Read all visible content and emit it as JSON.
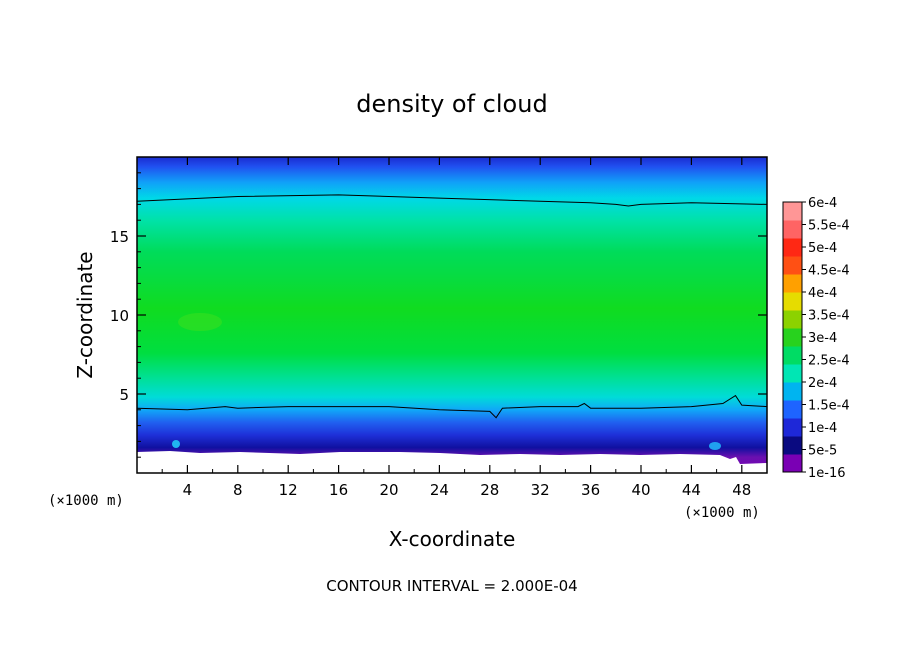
{
  "chart_data": {
    "type": "heatmap",
    "title": "density of cloud",
    "xlabel": "X-coordinate",
    "ylabel": "Z-coordinate",
    "x_unit": "(×1000 m)",
    "y_unit": "(×1000 m)",
    "xlim": [
      0,
      50
    ],
    "ylim": [
      0,
      20
    ],
    "x_ticks": [
      4,
      8,
      12,
      16,
      20,
      24,
      28,
      32,
      36,
      40,
      44,
      48
    ],
    "x_tick_labels": [
      "4",
      "8",
      "12",
      "16",
      "20",
      "24",
      "28",
      "32",
      "36",
      "40",
      "44",
      "48"
    ],
    "y_ticks": [
      5,
      10,
      15
    ],
    "y_tick_labels": [
      "5",
      "10",
      "15"
    ],
    "contour_interval_text": "CONTOUR INTERVAL = 2.000E-04",
    "colorbar": {
      "levels": [
        "1e-16",
        "5e-5",
        "1e-4",
        "1.5e-4",
        "2e-4",
        "2.5e-4",
        "3e-4",
        "3.5e-4",
        "4e-4",
        "4.5e-4",
        "5e-4",
        "5.5e-4",
        "6e-4"
      ],
      "colors": [
        "#7a00b4",
        "#0a0a80",
        "#1e28d8",
        "#1e64ff",
        "#00b4f0",
        "#00e6b4",
        "#00dc64",
        "#28d21e",
        "#8cd200",
        "#e6dc00",
        "#ffa000",
        "#ff5014",
        "#ff2814",
        "#ff6464",
        "#ff9696"
      ]
    },
    "field_bands": [
      {
        "z_from": 0.0,
        "z_to": 1.2,
        "value": "no data"
      },
      {
        "z_from": 1.2,
        "z_to": 1.6,
        "value": "1e-16"
      },
      {
        "z_from": 1.6,
        "z_to": 2.3,
        "value": "5e-5"
      },
      {
        "z_from": 2.3,
        "z_to": 3.5,
        "value": "1e-4"
      },
      {
        "z_from": 3.5,
        "z_to": 4.2,
        "value": "1.5e-4"
      },
      {
        "z_from": 4.2,
        "z_to": 6.0,
        "value": "2e-4"
      },
      {
        "z_from": 6.0,
        "z_to": 14.5,
        "value": "2.5e-4"
      },
      {
        "z_from": 14.5,
        "z_to": 17.5,
        "value": "2e-4"
      },
      {
        "z_from": 17.5,
        "z_to": 19.0,
        "value": "1.5e-4"
      },
      {
        "z_from": 19.0,
        "z_to": 20.0,
        "value": "1e-4"
      }
    ],
    "contour_lines": [
      {
        "name": "upper 2e-4 contour",
        "points": [
          [
            0,
            17.2
          ],
          [
            8,
            17.5
          ],
          [
            16,
            17.6
          ],
          [
            24,
            17.4
          ],
          [
            32,
            17.2
          ],
          [
            36,
            17.1
          ],
          [
            38,
            17.0
          ],
          [
            39,
            16.9
          ],
          [
            40,
            17.0
          ],
          [
            44,
            17.1
          ],
          [
            50,
            17.0
          ]
        ]
      },
      {
        "name": "lower 2e-4 contour",
        "points": [
          [
            0,
            4.1
          ],
          [
            4,
            4.0
          ],
          [
            7,
            4.2
          ],
          [
            8,
            4.1
          ],
          [
            12,
            4.2
          ],
          [
            16,
            4.2
          ],
          [
            20,
            4.2
          ],
          [
            24,
            4.0
          ],
          [
            28,
            3.9
          ],
          [
            28.5,
            3.5
          ],
          [
            29,
            4.1
          ],
          [
            32,
            4.2
          ],
          [
            35,
            4.2
          ],
          [
            35.5,
            4.4
          ],
          [
            36,
            4.1
          ],
          [
            40,
            4.1
          ],
          [
            44,
            4.2
          ],
          [
            46.5,
            4.4
          ],
          [
            47.5,
            4.9
          ],
          [
            48,
            4.3
          ],
          [
            50,
            4.2
          ]
        ]
      }
    ]
  }
}
